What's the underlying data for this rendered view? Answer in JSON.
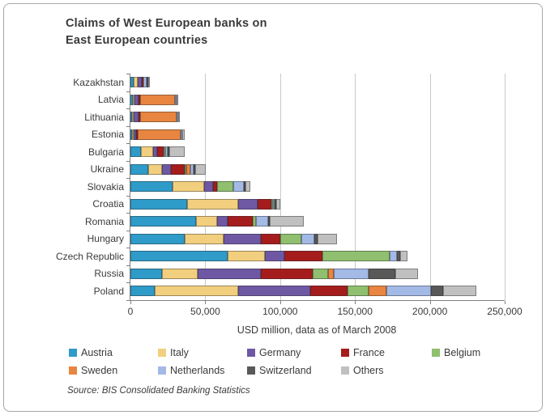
{
  "title_line1": "Claims of West European banks on",
  "title_line2": "East European countries",
  "xlabel": "USD million, data as of March 2008",
  "source": "Source: BIS Consolidated Banking Statistics",
  "chart_data": {
    "type": "bar",
    "orientation": "horizontal",
    "stacked": true,
    "grid": true,
    "legend_position": "bottom",
    "title": "Claims of West European banks on East European countries",
    "xlabel": "USD million, data as of March 2008",
    "xlim": [
      0,
      250000
    ],
    "x_ticks": [
      0,
      50000,
      100000,
      150000,
      200000,
      250000
    ],
    "x_tick_labels": [
      "0",
      "50,000",
      "100,000",
      "150,000",
      "200,000",
      "250,000"
    ],
    "categories": [
      "Kazakhstan",
      "Latvia",
      "Lithuania",
      "Estonia",
      "Bulgaria",
      "Ukraine",
      "Slovakia",
      "Croatia",
      "Romania",
      "Hungary",
      "Czech Republic",
      "Russia",
      "Poland"
    ],
    "series": [
      {
        "name": "Austria",
        "color": "#2E9BC9",
        "values": [
          2000,
          1500,
          1000,
          500,
          7000,
          12000,
          28000,
          38000,
          44000,
          36000,
          65000,
          21000,
          16000
        ]
      },
      {
        "name": "Italy",
        "color": "#F2CF7E",
        "values": [
          3000,
          500,
          1000,
          500,
          8000,
          9000,
          21000,
          34000,
          14000,
          26000,
          25000,
          24000,
          56000
        ]
      },
      {
        "name": "Germany",
        "color": "#6E58A4",
        "values": [
          2500,
          3000,
          3500,
          1500,
          3000,
          6000,
          6000,
          13000,
          7000,
          25000,
          13000,
          42000,
          48000
        ]
      },
      {
        "name": "France",
        "color": "#A51C1C",
        "values": [
          1000,
          500,
          1000,
          500,
          4000,
          9000,
          3000,
          9000,
          17000,
          13000,
          25000,
          35000,
          25000
        ]
      },
      {
        "name": "Belgium",
        "color": "#8FBF6F",
        "values": [
          0,
          0,
          0,
          0,
          1000,
          1000,
          11000,
          1000,
          2000,
          14000,
          45000,
          10000,
          14000
        ]
      },
      {
        "name": "Sweden",
        "color": "#E88540",
        "values": [
          0,
          23000,
          24000,
          29000,
          0,
          3000,
          0,
          0,
          0,
          0,
          0,
          4000,
          12000
        ]
      },
      {
        "name": "Netherlands",
        "color": "#A3B9E6",
        "values": [
          2000,
          500,
          500,
          500,
          2000,
          2000,
          7000,
          1000,
          8000,
          9000,
          5000,
          23000,
          30000
        ]
      },
      {
        "name": "Switzerland",
        "color": "#595959",
        "values": [
          1000,
          0,
          0,
          0,
          1000,
          1000,
          1000,
          1000,
          1000,
          2000,
          2000,
          18000,
          8000
        ]
      },
      {
        "name": "Others",
        "color": "#C0C0C0",
        "values": [
          1500,
          1000,
          1000,
          1500,
          10000,
          7000,
          3000,
          3000,
          23000,
          13000,
          5000,
          15000,
          22000
        ]
      }
    ]
  }
}
